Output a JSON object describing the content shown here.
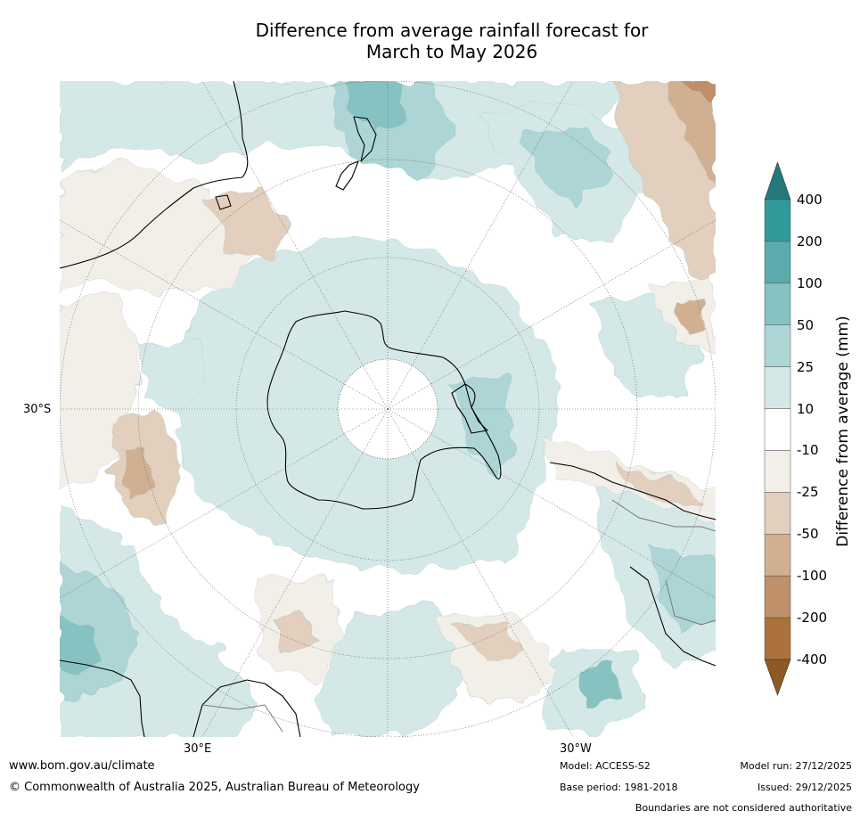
{
  "title": {
    "line1": "Difference from average rainfall forecast for",
    "line2": "March to May 2026"
  },
  "map": {
    "projection": "south-polar-stereographic",
    "axis_labels": {
      "lat": "30°S",
      "lon_east": "30°E",
      "lon_west": "30°W"
    },
    "landmasses": [
      "Australia",
      "New Zealand",
      "Antarctica",
      "South America",
      "Africa"
    ]
  },
  "colorbar": {
    "title": "Difference from average (mm)",
    "ticks": [
      "400",
      "200",
      "100",
      "50",
      "25",
      "10",
      "-10",
      "-25",
      "-50",
      "-100",
      "-200",
      "-400"
    ],
    "colors": [
      "#8c5a22",
      "#ab723c",
      "#bf9069",
      "#d1b092",
      "#e2cfbd",
      "#f2eee8",
      "#ffffff",
      "#d5e8e8",
      "#add5d5",
      "#86c2c2",
      "#5aabab",
      "#2f9a9a",
      "#247a7a"
    ]
  },
  "footer": {
    "website": "www.bom.gov.au/climate",
    "copyright": "© Commonwealth of Australia 2025, Australian Bureau of Meteorology",
    "model": "Model: ACCESS-S2",
    "base_period": "Base period: 1981-2018",
    "model_run": "Model run: 27/12/2025",
    "issued": "Issued: 29/12/2025",
    "disclaimer": "Boundaries are not considered authoritative"
  }
}
